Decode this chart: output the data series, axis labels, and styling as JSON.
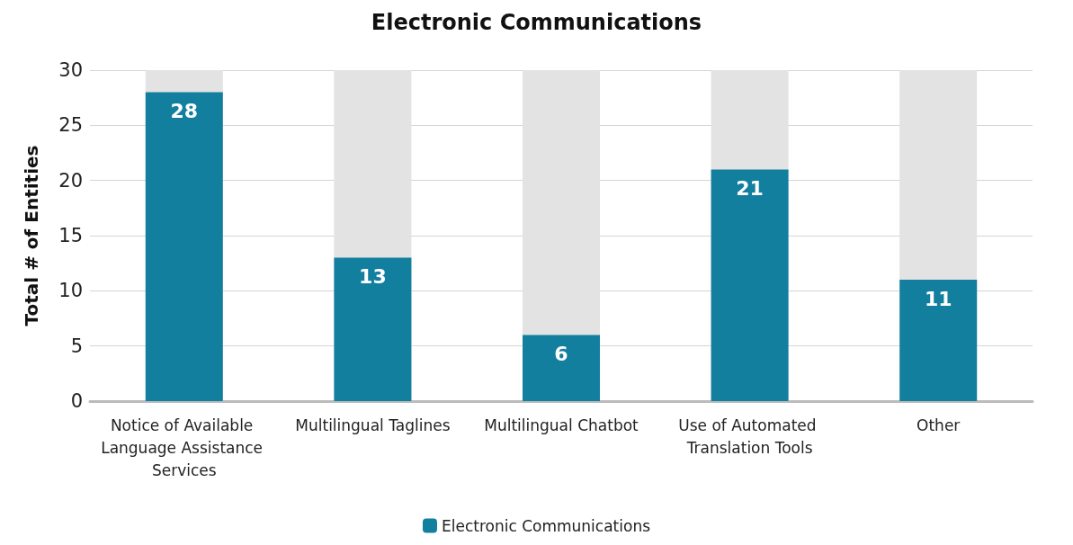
{
  "chart_data": {
    "type": "bar",
    "title": "Electronic Communications",
    "ylabel": "Total # of Entities",
    "categories": [
      "Notice of Available Language Assistance Services",
      "Multilingual Taglines",
      "Multilingual Chatbot",
      "Use of Automated Translation Tools",
      "Other"
    ],
    "series": [
      {
        "name": "Electronic Communications",
        "color": "#137f9f",
        "values": [
          28,
          13,
          6,
          21,
          11
        ]
      }
    ],
    "ylim": [
      0,
      30
    ],
    "yticks": [
      0,
      5,
      10,
      15,
      20,
      25,
      30
    ],
    "grid": "y",
    "legend": "bottom",
    "data_labels": true
  }
}
